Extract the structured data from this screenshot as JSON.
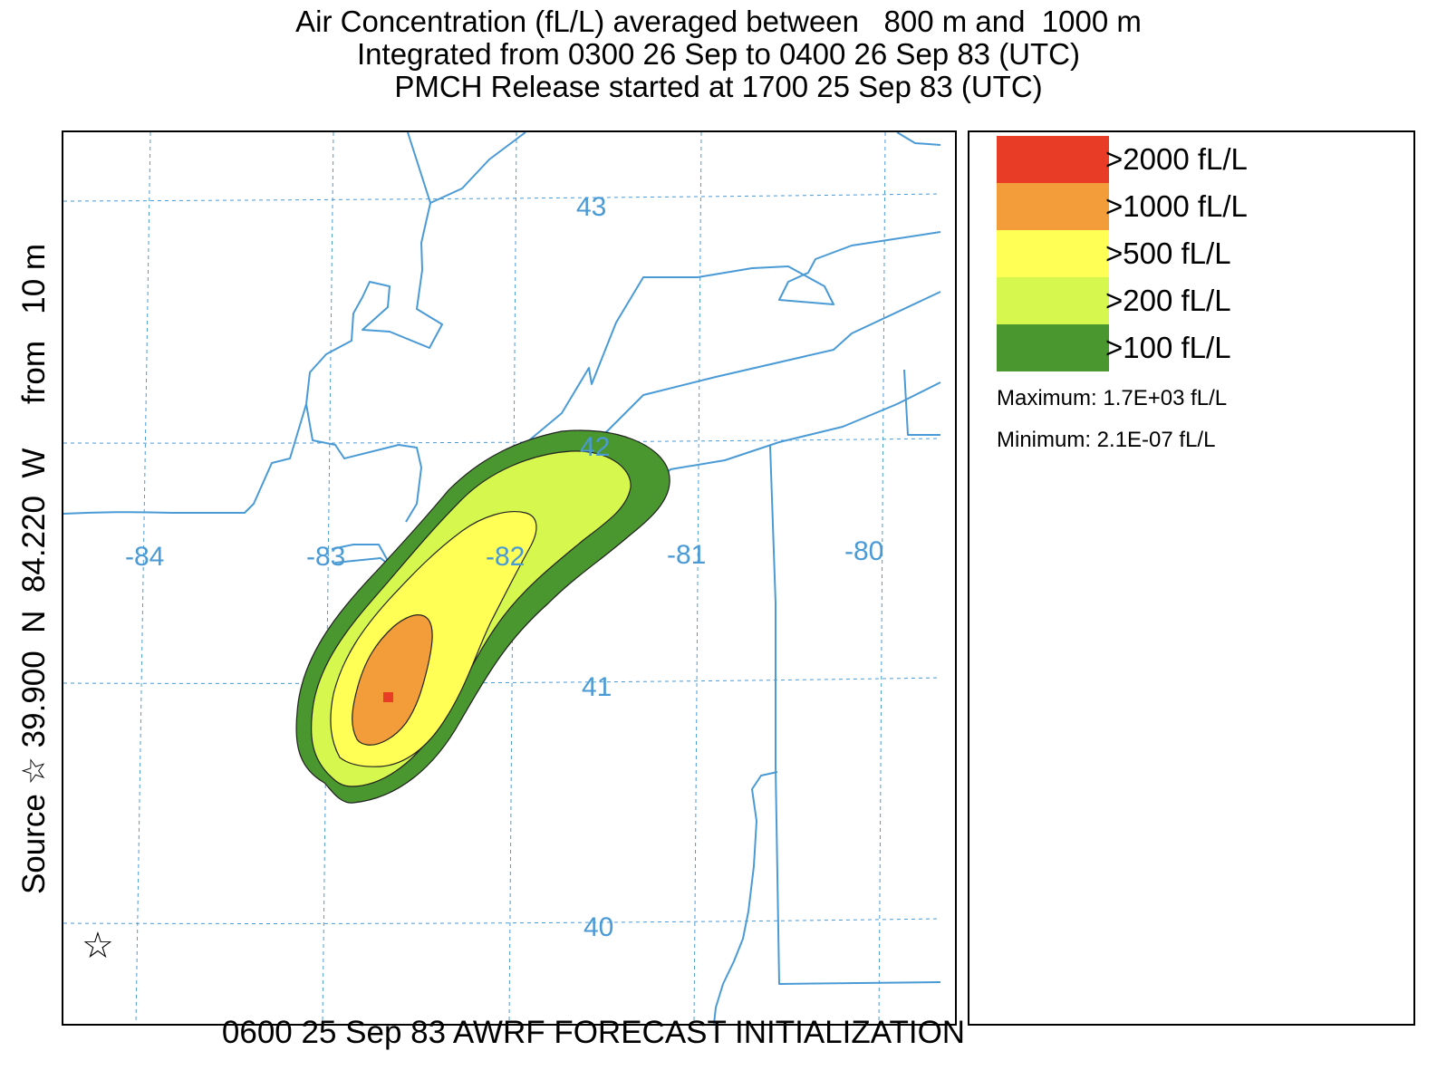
{
  "title": {
    "line1": "Air Concentration (fL/L) averaged between   800 m and  1000 m",
    "line2": "Integrated from 0300 26 Sep to 0400 26 Sep 83 (UTC)",
    "line3": "PMCH Release started at 1700 25 Sep 83 (UTC)"
  },
  "side_label": {
    "text": "Source ☆ 39.900  N  84.220  W     from   10 m"
  },
  "map": {
    "latitude_labels": [
      "43",
      "42",
      "41",
      "40"
    ],
    "longitude_labels": [
      "-84",
      "-83",
      "-82",
      "-81",
      "-80"
    ],
    "source_marker": "star-icon",
    "max_marker": "maximum-marker",
    "colors": {
      "grid": "#4a9ad6",
      "coast": "#4a9ad6"
    }
  },
  "legend": {
    "items": [
      {
        "label": ">2000 fL/L",
        "color": "#e83c26"
      },
      {
        "label": ">1000 fL/L",
        "color": "#f29c3a"
      },
      {
        "label": ">500 fL/L",
        "color": "#ffff55"
      },
      {
        "label": ">200 fL/L",
        "color": "#d6f74d"
      },
      {
        "label": ">100 fL/L",
        "color": "#4a962f"
      }
    ],
    "maximum": "Maximum: 1.7E+03 fL/L",
    "minimum": "Minimum: 2.1E-07 fL/L"
  },
  "footer": {
    "text": "0600 25 Sep 83 AWRF FORECAST INITIALIZATION"
  }
}
